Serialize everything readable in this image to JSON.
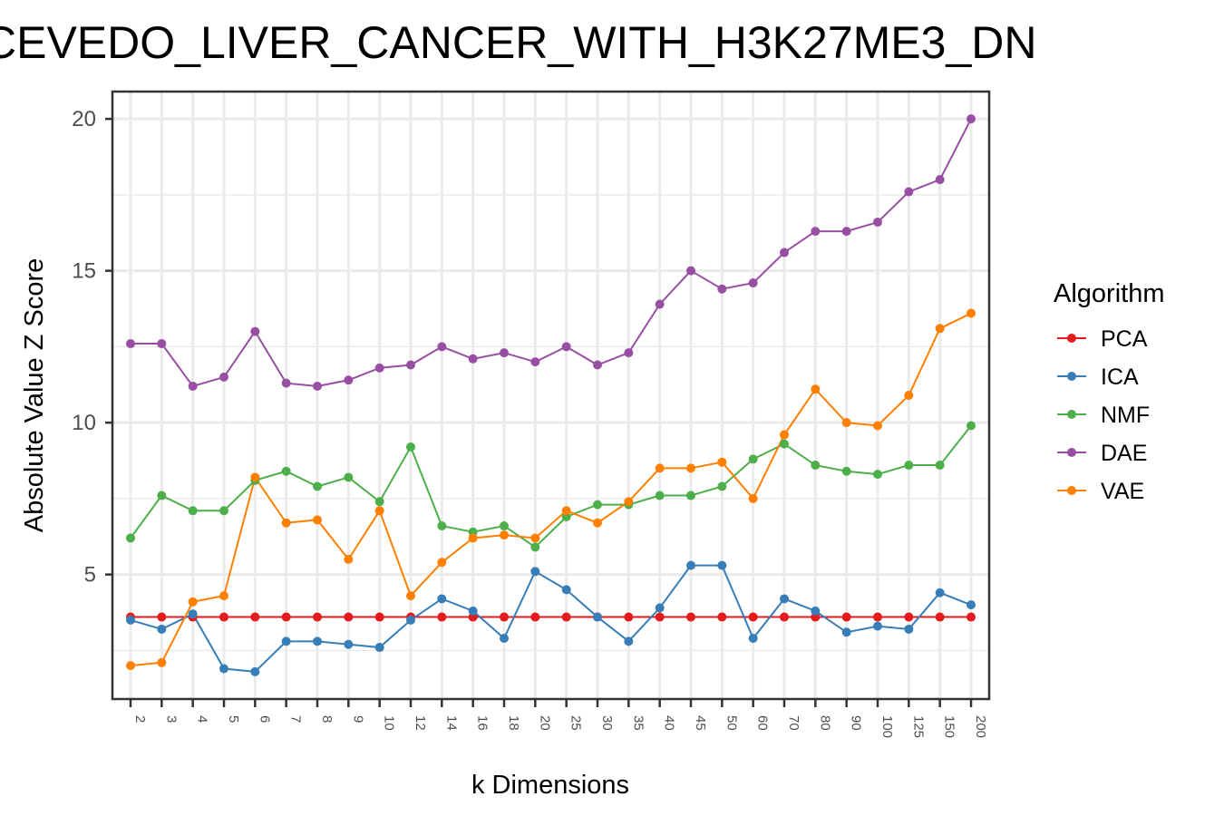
{
  "chart_data": {
    "type": "line",
    "title": "CEVEDO_LIVER_CANCER_WITH_H3K27ME3_DN",
    "xlabel": "k Dimensions",
    "ylabel": "Absolute Value Z Score",
    "categories": [
      "2",
      "3",
      "4",
      "5",
      "6",
      "7",
      "8",
      "9",
      "10",
      "12",
      "14",
      "16",
      "18",
      "20",
      "25",
      "30",
      "35",
      "40",
      "45",
      "50",
      "60",
      "70",
      "80",
      "90",
      "100",
      "125",
      "150",
      "200"
    ],
    "ylim": [
      0.9,
      20.9
    ],
    "yticks": [
      5,
      10,
      15,
      20
    ],
    "grid": true,
    "legend_title": "Algorithm",
    "legend_position": "right",
    "series": [
      {
        "name": "PCA",
        "color": "#e41a1c",
        "values": [
          3.6,
          3.6,
          3.6,
          3.6,
          3.6,
          3.6,
          3.6,
          3.6,
          3.6,
          3.6,
          3.6,
          3.6,
          3.6,
          3.6,
          3.6,
          3.6,
          3.6,
          3.6,
          3.6,
          3.6,
          3.6,
          3.6,
          3.6,
          3.6,
          3.6,
          3.6,
          3.6,
          3.6
        ]
      },
      {
        "name": "ICA",
        "color": "#377eb8",
        "values": [
          3.5,
          3.2,
          3.7,
          1.9,
          1.8,
          2.8,
          2.8,
          2.7,
          2.6,
          3.5,
          4.2,
          3.8,
          2.9,
          5.1,
          4.5,
          3.6,
          2.8,
          3.9,
          5.3,
          5.3,
          2.9,
          4.2,
          3.8,
          3.1,
          3.3,
          3.2,
          4.4,
          4.0
        ]
      },
      {
        "name": "NMF",
        "color": "#4daf4a",
        "values": [
          6.2,
          7.6,
          7.1,
          7.1,
          8.1,
          8.4,
          7.9,
          8.2,
          7.4,
          9.2,
          6.6,
          6.4,
          6.6,
          5.9,
          6.9,
          7.3,
          7.3,
          7.6,
          7.6,
          7.9,
          8.8,
          9.3,
          8.6,
          8.4,
          8.3,
          8.6,
          8.6,
          9.9
        ]
      },
      {
        "name": "DAE",
        "color": "#984ea3",
        "values": [
          12.6,
          12.6,
          11.2,
          11.5,
          13.0,
          11.3,
          11.2,
          11.4,
          11.8,
          11.9,
          12.5,
          12.1,
          12.3,
          12.0,
          12.5,
          11.9,
          12.3,
          13.9,
          15.0,
          14.4,
          14.6,
          15.6,
          16.3,
          16.3,
          16.6,
          17.6,
          18.0,
          20.0
        ]
      },
      {
        "name": "VAE",
        "color": "#ff7f00",
        "values": [
          2.0,
          2.1,
          4.1,
          4.3,
          8.2,
          6.7,
          6.8,
          5.5,
          7.1,
          4.3,
          5.4,
          6.2,
          6.3,
          6.2,
          7.1,
          6.7,
          7.4,
          8.5,
          8.5,
          8.7,
          7.5,
          9.6,
          11.1,
          10.0,
          9.9,
          10.9,
          13.1,
          13.6
        ]
      }
    ]
  }
}
